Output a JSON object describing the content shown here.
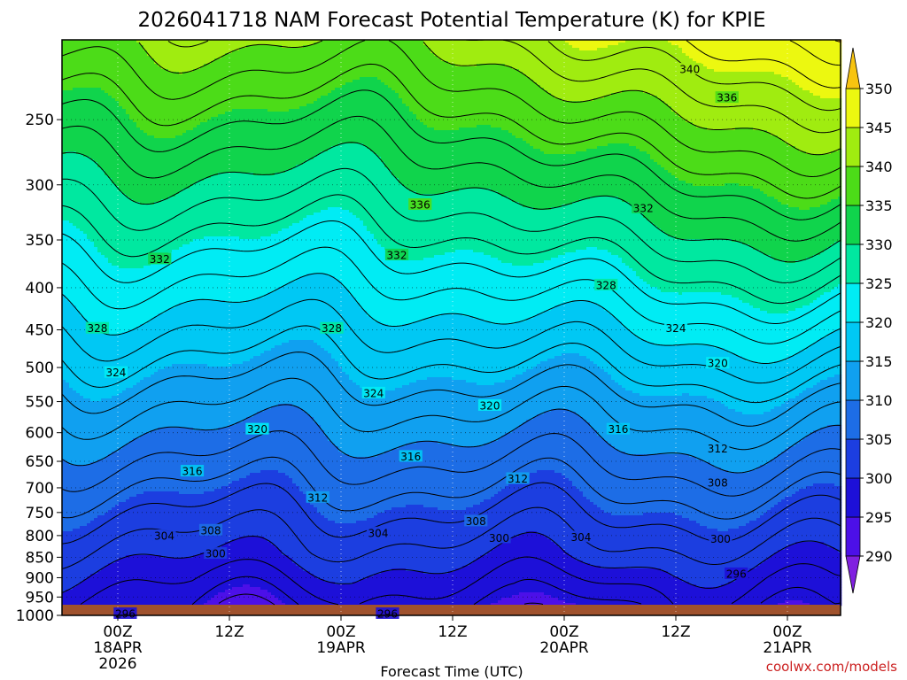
{
  "chart_data": {
    "type": "heatmap",
    "title": "2026041718 NAM Forecast Potential Temperature (K) for KPIE",
    "xlabel": "Forecast Time (UTC)",
    "ylabel": "",
    "credit": "coolwx.com/models",
    "x_ticks": [
      {
        "h": 6,
        "lines": [
          "00Z",
          "18APR",
          "2026"
        ]
      },
      {
        "h": 18,
        "lines": [
          "12Z"
        ]
      },
      {
        "h": 30,
        "lines": [
          "00Z",
          "19APR"
        ]
      },
      {
        "h": 42,
        "lines": [
          "12Z"
        ]
      },
      {
        "h": 54,
        "lines": [
          "00Z",
          "20APR"
        ]
      },
      {
        "h": 66,
        "lines": [
          "12Z"
        ]
      },
      {
        "h": 78,
        "lines": [
          "00Z",
          "21APR"
        ]
      }
    ],
    "xlim": [
      0,
      84
    ],
    "y_ticks": [
      250,
      300,
      350,
      400,
      450,
      500,
      550,
      600,
      650,
      700,
      750,
      800,
      850,
      900,
      950,
      1000
    ],
    "ylim": [
      200,
      1000
    ],
    "y_scale": "log pressure (hPa)",
    "colorbar": {
      "labels": [
        350,
        345,
        340,
        335,
        330,
        325,
        320,
        315,
        310,
        305,
        300,
        295,
        290
      ],
      "bands": [
        {
          "lo": 285,
          "hi": 290,
          "color": "#8020e0"
        },
        {
          "lo": 290,
          "hi": 295,
          "color": "#4c10e8"
        },
        {
          "lo": 295,
          "hi": 300,
          "color": "#1d10d8"
        },
        {
          "lo": 300,
          "hi": 305,
          "color": "#1c3ee0"
        },
        {
          "lo": 305,
          "hi": 310,
          "color": "#1d6de6"
        },
        {
          "lo": 310,
          "hi": 315,
          "color": "#10a0f0"
        },
        {
          "lo": 315,
          "hi": 320,
          "color": "#00c8f4"
        },
        {
          "lo": 320,
          "hi": 325,
          "color": "#00ecf4"
        },
        {
          "lo": 325,
          "hi": 330,
          "color": "#00e8a0"
        },
        {
          "lo": 330,
          "hi": 335,
          "color": "#10d44c"
        },
        {
          "lo": 335,
          "hi": 340,
          "color": "#4cdc18"
        },
        {
          "lo": 340,
          "hi": 345,
          "color": "#a0ec10"
        },
        {
          "lo": 345,
          "hi": 350,
          "color": "#ecf810"
        },
        {
          "lo": 350,
          "hi": 355,
          "color": "#f8c410"
        }
      ]
    },
    "contour_interval": 2,
    "contour_labels": [
      {
        "t": 340,
        "h": 67.5,
        "p": 217
      },
      {
        "t": 336,
        "h": 71.5,
        "p": 235
      },
      {
        "t": 336,
        "h": 38.5,
        "p": 317
      },
      {
        "t": 332,
        "h": 62.5,
        "p": 320
      },
      {
        "t": 332,
        "h": 10.5,
        "p": 369
      },
      {
        "t": 332,
        "h": 36,
        "p": 365
      },
      {
        "t": 328,
        "h": 3.8,
        "p": 448
      },
      {
        "t": 328,
        "h": 29,
        "p": 448
      },
      {
        "t": 328,
        "h": 58.5,
        "p": 397
      },
      {
        "t": 324,
        "h": 66,
        "p": 448
      },
      {
        "t": 324,
        "h": 5.8,
        "p": 507
      },
      {
        "t": 324,
        "h": 33.5,
        "p": 537
      },
      {
        "t": 320,
        "h": 70.5,
        "p": 494
      },
      {
        "t": 320,
        "h": 46,
        "p": 556
      },
      {
        "t": 320,
        "h": 21,
        "p": 594
      },
      {
        "t": 316,
        "h": 59.8,
        "p": 594
      },
      {
        "t": 316,
        "h": 37.5,
        "p": 641
      },
      {
        "t": 316,
        "h": 14,
        "p": 668
      },
      {
        "t": 312,
        "h": 70.5,
        "p": 627
      },
      {
        "t": 312,
        "h": 49,
        "p": 682
      },
      {
        "t": 312,
        "h": 27.5,
        "p": 719
      },
      {
        "t": 308,
        "h": 70.5,
        "p": 690
      },
      {
        "t": 308,
        "h": 44.5,
        "p": 768
      },
      {
        "t": 308,
        "h": 16,
        "p": 788
      },
      {
        "t": 304,
        "h": 11,
        "p": 800
      },
      {
        "t": 304,
        "h": 34,
        "p": 794
      },
      {
        "t": 304,
        "h": 55.8,
        "p": 803
      },
      {
        "t": 300,
        "h": 47,
        "p": 805
      },
      {
        "t": 300,
        "h": 16.5,
        "p": 841
      },
      {
        "t": 300,
        "h": 70.8,
        "p": 807
      },
      {
        "t": 296,
        "h": 72.5,
        "p": 890
      },
      {
        "t": 296,
        "h": 35,
        "p": 995
      },
      {
        "t": 296,
        "h": 6.8,
        "p": 995
      }
    ]
  }
}
